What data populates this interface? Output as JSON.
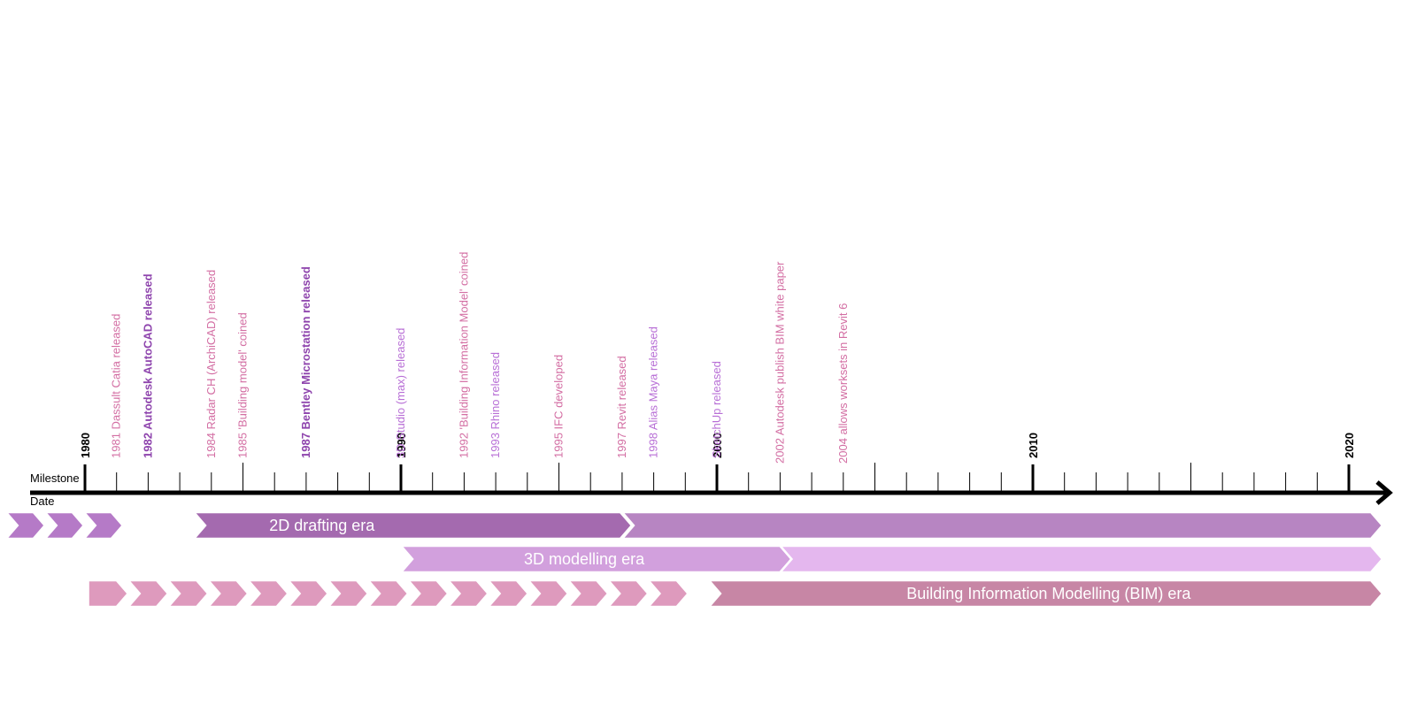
{
  "axis": {
    "row_label_milestone": "Milestone",
    "row_label_date": "Date",
    "start_year": 1980,
    "end_year": 2021,
    "major_ticks": [
      "1980",
      "1990",
      "2000",
      "2010",
      "2020"
    ]
  },
  "milestones": [
    {
      "year": 1981,
      "text": "1981 Dassult Catia released",
      "color": "#d36ea3",
      "weight": "normal"
    },
    {
      "year": 1982,
      "text": "1982 Autodesk AutoCAD released",
      "color": "#8e44ad",
      "weight": "bold"
    },
    {
      "year": 1984,
      "text": "1984 Radar CH (ArchiCAD) released",
      "color": "#d36ea3",
      "weight": "normal"
    },
    {
      "year": 1985,
      "text": "1985 'Building model' coined",
      "color": "#d36ea3",
      "weight": "normal"
    },
    {
      "year": 1987,
      "text": "1987 Bentley Microstation released",
      "color": "#8e44ad",
      "weight": "bold"
    },
    {
      "year": 1990,
      "text": "3D Studio (max) released",
      "color": "#b86fd6",
      "weight": "normal"
    },
    {
      "year": 1992,
      "text": "1992 'Building Information Model' coined",
      "color": "#d36ea3",
      "weight": "normal"
    },
    {
      "year": 1993,
      "text": "1993 Rhino released",
      "color": "#b86fd6",
      "weight": "normal"
    },
    {
      "year": 1995,
      "text": "1995 IFC developed",
      "color": "#d36ea3",
      "weight": "normal"
    },
    {
      "year": 1997,
      "text": "1997 Revit released",
      "color": "#d36ea3",
      "weight": "normal"
    },
    {
      "year": 1998,
      "text": "1998 Alias Maya released",
      "color": "#b86fd6",
      "weight": "normal"
    },
    {
      "year": 2000,
      "text": "SketchUp released",
      "color": "#b86fd6",
      "weight": "normal"
    },
    {
      "year": 2002,
      "text": "2002 Autodesk publish BIM white paper",
      "color": "#d36ea3",
      "weight": "normal"
    },
    {
      "year": 2004,
      "text": "2004 allows worksets in Revit  6",
      "color": "#d36ea3",
      "weight": "normal"
    }
  ],
  "eras": [
    {
      "label": "2D drafting era",
      "start_year": 1977.5,
      "solid_from_year": 1983.5,
      "label_year": 1987.5,
      "end_year": 2020.7,
      "chevron_color": "#b57ac7",
      "fill_color": "#a46aaf",
      "tail_color": "#b785c2"
    },
    {
      "label": "3D modelling era",
      "start_year": 1990,
      "solid_from_year": 1990,
      "label_year": 1995.8,
      "split_year": 2002,
      "end_year": 2020.7,
      "fill_color": "#d2a0dd",
      "tail_color": "#e4b7ee"
    },
    {
      "label": "Building Information Modelling (BIM) era",
      "start_year": 1980.1,
      "solid_from_year": 1999.8,
      "label_year": 2010.5,
      "end_year": 2020.7,
      "chevron_color": "#de9abd",
      "fill_color": "#c786a5"
    }
  ]
}
